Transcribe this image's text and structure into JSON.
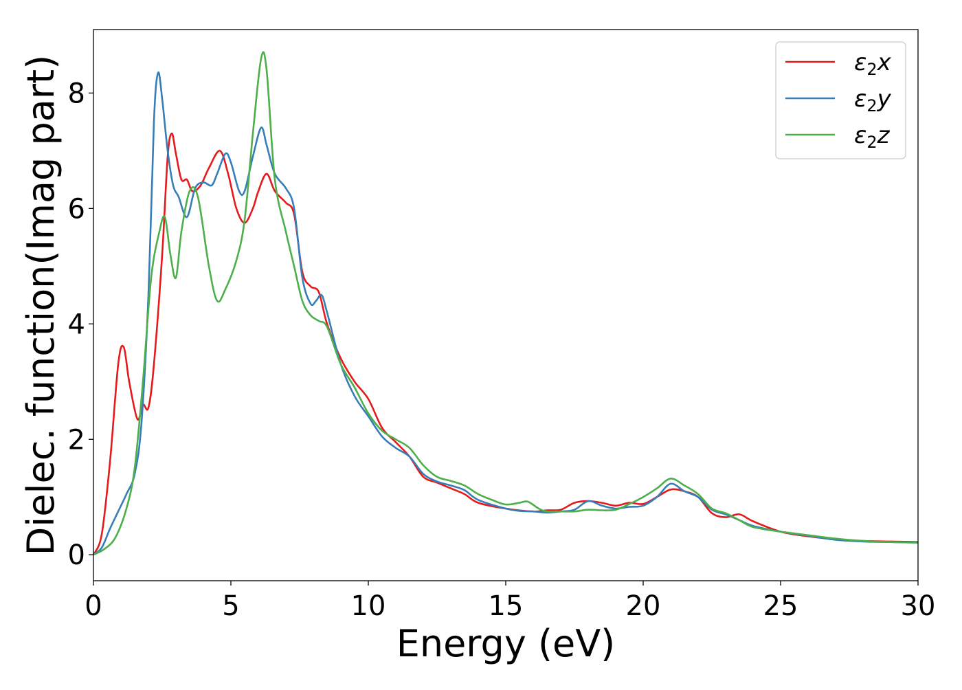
{
  "chart_data": {
    "type": "line",
    "title": "",
    "xlabel": "Energy (eV)",
    "ylabel": "Dielec. function(Imag part)",
    "xlim": [
      0,
      30
    ],
    "ylim": [
      -0.45,
      9.1
    ],
    "xticks": [
      0,
      5,
      10,
      15,
      20,
      25,
      30
    ],
    "yticks": [
      0,
      2,
      4,
      6,
      8
    ],
    "grid": false,
    "legend_position": "top-right",
    "series": [
      {
        "name": "ε2x",
        "legend_base": "ε",
        "legend_sub": "2",
        "legend_var": "x",
        "color": "#e41a1c",
        "points": [
          [
            0,
            0
          ],
          [
            0.3,
            0.35
          ],
          [
            0.6,
            1.6
          ],
          [
            0.9,
            3.3
          ],
          [
            1.1,
            3.6
          ],
          [
            1.3,
            3.0
          ],
          [
            1.6,
            2.35
          ],
          [
            1.8,
            2.6
          ],
          [
            2.0,
            2.55
          ],
          [
            2.2,
            3.3
          ],
          [
            2.5,
            5.2
          ],
          [
            2.7,
            6.9
          ],
          [
            2.85,
            7.3
          ],
          [
            3.0,
            6.95
          ],
          [
            3.2,
            6.5
          ],
          [
            3.4,
            6.5
          ],
          [
            3.6,
            6.3
          ],
          [
            3.9,
            6.4
          ],
          [
            4.2,
            6.7
          ],
          [
            4.6,
            7.0
          ],
          [
            4.9,
            6.6
          ],
          [
            5.2,
            6.0
          ],
          [
            5.5,
            5.75
          ],
          [
            5.8,
            6.0
          ],
          [
            6.0,
            6.3
          ],
          [
            6.3,
            6.6
          ],
          [
            6.6,
            6.3
          ],
          [
            7.0,
            6.1
          ],
          [
            7.3,
            5.9
          ],
          [
            7.6,
            4.9
          ],
          [
            7.9,
            4.65
          ],
          [
            8.2,
            4.55
          ],
          [
            8.5,
            4.0
          ],
          [
            9.0,
            3.4
          ],
          [
            9.5,
            3.0
          ],
          [
            10.0,
            2.7
          ],
          [
            10.5,
            2.2
          ],
          [
            11.0,
            1.95
          ],
          [
            11.5,
            1.7
          ],
          [
            12.0,
            1.35
          ],
          [
            12.5,
            1.25
          ],
          [
            13.0,
            1.15
          ],
          [
            13.5,
            1.05
          ],
          [
            14.0,
            0.9
          ],
          [
            15.0,
            0.8
          ],
          [
            16.0,
            0.75
          ],
          [
            16.5,
            0.77
          ],
          [
            17.0,
            0.78
          ],
          [
            17.5,
            0.9
          ],
          [
            18.0,
            0.93
          ],
          [
            18.5,
            0.9
          ],
          [
            19.0,
            0.85
          ],
          [
            19.5,
            0.9
          ],
          [
            20.0,
            0.88
          ],
          [
            20.5,
            1.0
          ],
          [
            21.0,
            1.13
          ],
          [
            21.5,
            1.1
          ],
          [
            22.0,
            1.0
          ],
          [
            22.5,
            0.72
          ],
          [
            23.0,
            0.65
          ],
          [
            23.5,
            0.7
          ],
          [
            24.0,
            0.58
          ],
          [
            25.0,
            0.4
          ],
          [
            26.0,
            0.32
          ],
          [
            27.0,
            0.27
          ],
          [
            28.0,
            0.24
          ],
          [
            29.0,
            0.23
          ],
          [
            30.0,
            0.22
          ]
        ]
      },
      {
        "name": "ε2y",
        "legend_base": "ε",
        "legend_sub": "2",
        "legend_var": "y",
        "color": "#377eb8",
        "points": [
          [
            0,
            0
          ],
          [
            0.3,
            0.12
          ],
          [
            0.6,
            0.45
          ],
          [
            0.9,
            0.75
          ],
          [
            1.2,
            1.05
          ],
          [
            1.5,
            1.4
          ],
          [
            1.75,
            2.3
          ],
          [
            2.0,
            4.5
          ],
          [
            2.2,
            7.5
          ],
          [
            2.35,
            8.35
          ],
          [
            2.5,
            7.9
          ],
          [
            2.7,
            7.0
          ],
          [
            2.9,
            6.4
          ],
          [
            3.1,
            6.2
          ],
          [
            3.4,
            5.85
          ],
          [
            3.7,
            6.35
          ],
          [
            4.0,
            6.45
          ],
          [
            4.3,
            6.4
          ],
          [
            4.5,
            6.6
          ],
          [
            4.8,
            6.95
          ],
          [
            5.0,
            6.8
          ],
          [
            5.3,
            6.3
          ],
          [
            5.5,
            6.3
          ],
          [
            5.8,
            6.9
          ],
          [
            6.1,
            7.4
          ],
          [
            6.3,
            7.1
          ],
          [
            6.6,
            6.6
          ],
          [
            7.0,
            6.35
          ],
          [
            7.3,
            6.0
          ],
          [
            7.6,
            4.8
          ],
          [
            7.9,
            4.35
          ],
          [
            8.1,
            4.4
          ],
          [
            8.3,
            4.5
          ],
          [
            8.5,
            4.2
          ],
          [
            9.0,
            3.3
          ],
          [
            9.5,
            2.75
          ],
          [
            10.0,
            2.4
          ],
          [
            10.5,
            2.05
          ],
          [
            11.0,
            1.85
          ],
          [
            11.5,
            1.7
          ],
          [
            12.0,
            1.4
          ],
          [
            12.5,
            1.27
          ],
          [
            13.0,
            1.2
          ],
          [
            13.5,
            1.12
          ],
          [
            14.0,
            0.95
          ],
          [
            15.0,
            0.8
          ],
          [
            15.5,
            0.76
          ],
          [
            16.0,
            0.75
          ],
          [
            16.5,
            0.73
          ],
          [
            17.0,
            0.75
          ],
          [
            17.5,
            0.78
          ],
          [
            18.0,
            0.93
          ],
          [
            18.5,
            0.85
          ],
          [
            19.0,
            0.8
          ],
          [
            19.5,
            0.83
          ],
          [
            20.0,
            0.85
          ],
          [
            20.5,
            1.0
          ],
          [
            21.0,
            1.23
          ],
          [
            21.5,
            1.1
          ],
          [
            22.0,
            1.0
          ],
          [
            22.5,
            0.78
          ],
          [
            23.0,
            0.7
          ],
          [
            23.5,
            0.6
          ],
          [
            24.0,
            0.5
          ],
          [
            25.0,
            0.4
          ],
          [
            26.0,
            0.33
          ],
          [
            27.0,
            0.26
          ],
          [
            28.0,
            0.23
          ],
          [
            29.0,
            0.22
          ],
          [
            30.0,
            0.21
          ]
        ]
      },
      {
        "name": "ε2z",
        "legend_base": "ε",
        "legend_sub": "2",
        "legend_var": "z",
        "color": "#4daf4a",
        "points": [
          [
            0,
            0
          ],
          [
            0.4,
            0.1
          ],
          [
            0.8,
            0.3
          ],
          [
            1.2,
            0.8
          ],
          [
            1.5,
            1.5
          ],
          [
            1.8,
            3.0
          ],
          [
            2.1,
            4.8
          ],
          [
            2.4,
            5.6
          ],
          [
            2.6,
            5.85
          ],
          [
            2.8,
            5.2
          ],
          [
            3.0,
            4.8
          ],
          [
            3.2,
            5.6
          ],
          [
            3.5,
            6.3
          ],
          [
            3.8,
            6.2
          ],
          [
            4.2,
            5.0
          ],
          [
            4.5,
            4.4
          ],
          [
            4.8,
            4.6
          ],
          [
            5.2,
            5.1
          ],
          [
            5.5,
            5.8
          ],
          [
            5.8,
            7.3
          ],
          [
            6.1,
            8.6
          ],
          [
            6.3,
            8.4
          ],
          [
            6.6,
            6.5
          ],
          [
            7.0,
            5.6
          ],
          [
            7.3,
            5.0
          ],
          [
            7.6,
            4.4
          ],
          [
            7.9,
            4.15
          ],
          [
            8.2,
            4.05
          ],
          [
            8.5,
            3.95
          ],
          [
            9.0,
            3.3
          ],
          [
            9.5,
            2.9
          ],
          [
            10.0,
            2.45
          ],
          [
            10.5,
            2.15
          ],
          [
            11.0,
            2.0
          ],
          [
            11.5,
            1.85
          ],
          [
            12.0,
            1.55
          ],
          [
            12.5,
            1.35
          ],
          [
            13.0,
            1.28
          ],
          [
            13.5,
            1.2
          ],
          [
            14.0,
            1.05
          ],
          [
            14.5,
            0.95
          ],
          [
            15.0,
            0.87
          ],
          [
            15.5,
            0.9
          ],
          [
            15.8,
            0.92
          ],
          [
            16.2,
            0.8
          ],
          [
            16.5,
            0.75
          ],
          [
            17.0,
            0.75
          ],
          [
            17.5,
            0.75
          ],
          [
            18.0,
            0.78
          ],
          [
            18.5,
            0.77
          ],
          [
            19.0,
            0.78
          ],
          [
            19.5,
            0.88
          ],
          [
            20.0,
            1.0
          ],
          [
            20.5,
            1.15
          ],
          [
            21.0,
            1.32
          ],
          [
            21.5,
            1.2
          ],
          [
            22.0,
            1.05
          ],
          [
            22.5,
            0.8
          ],
          [
            23.0,
            0.72
          ],
          [
            23.5,
            0.6
          ],
          [
            24.0,
            0.48
          ],
          [
            25.0,
            0.4
          ],
          [
            26.0,
            0.34
          ],
          [
            27.0,
            0.28
          ],
          [
            28.0,
            0.24
          ],
          [
            29.0,
            0.22
          ],
          [
            30.0,
            0.21
          ]
        ]
      }
    ]
  }
}
